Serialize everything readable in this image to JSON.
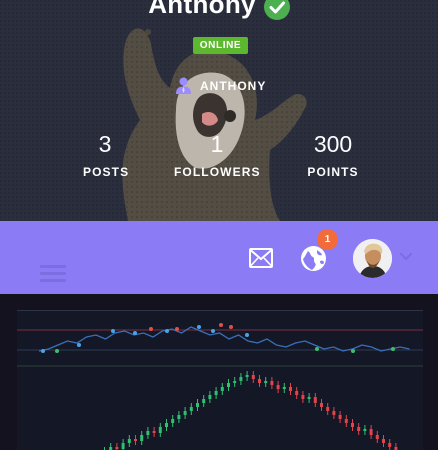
{
  "profile": {
    "name": "Anthony",
    "status": "ONLINE",
    "username": "ANTHONY",
    "verified": true,
    "colors": {
      "online": "#5cb82e",
      "verified": "#4caf50",
      "user_icon": "#9b8cff"
    }
  },
  "stats": [
    {
      "value": "3",
      "label": "POSTS"
    },
    {
      "value": "1",
      "label": "FOLLOWERS"
    },
    {
      "value": "300",
      "label": "POINTS"
    }
  ],
  "toolbar": {
    "accent": "#8b7cf6",
    "menu_icon": "hamburger-icon",
    "mail_icon": "mail-icon",
    "notifications_icon": "globe-icon",
    "notification_count": "1",
    "avatar_icon": "avatar",
    "dropdown_icon": "chevron-down-icon"
  },
  "content": {
    "image": "stock-candlestick-chart"
  }
}
